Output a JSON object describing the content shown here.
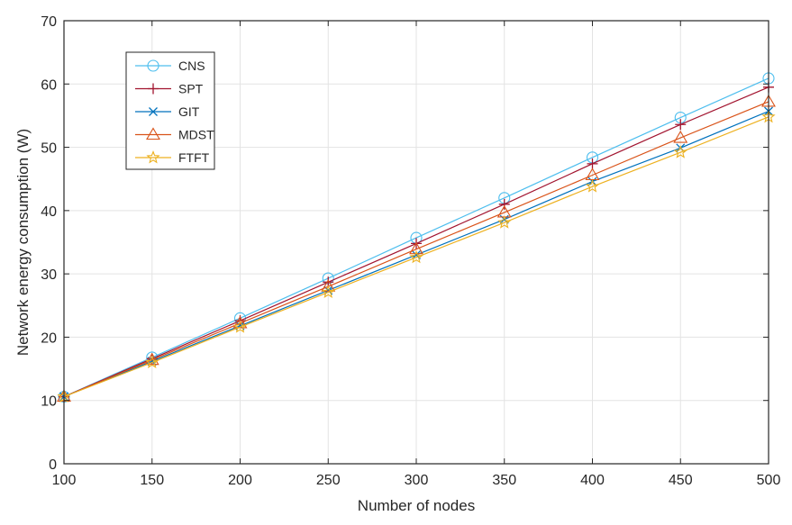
{
  "chart_data": {
    "type": "line",
    "title": "",
    "xlabel": "Number of nodes",
    "ylabel": "Network energy consumption (W)",
    "xlim": [
      100,
      500
    ],
    "ylim": [
      0,
      70
    ],
    "xticks": [
      100,
      150,
      200,
      250,
      300,
      350,
      400,
      450,
      500
    ],
    "yticks": [
      0,
      10,
      20,
      30,
      40,
      50,
      60,
      70
    ],
    "grid": true,
    "legend_position": "top-left",
    "x": [
      100,
      150,
      200,
      250,
      300,
      350,
      400,
      450,
      500
    ],
    "series": [
      {
        "name": "CNS",
        "color": "#4DBEEE",
        "marker": "circle",
        "values": [
          10.6,
          16.8,
          23.0,
          29.3,
          35.7,
          42.0,
          48.4,
          54.7,
          60.9
        ]
      },
      {
        "name": "SPT",
        "color": "#A2142F",
        "marker": "plus",
        "values": [
          10.6,
          16.6,
          22.6,
          28.7,
          34.8,
          41.0,
          47.4,
          53.6,
          59.5
        ]
      },
      {
        "name": "GIT",
        "color": "#0072BD",
        "marker": "x",
        "values": [
          10.6,
          16.2,
          21.8,
          27.4,
          33.0,
          38.6,
          44.6,
          49.9,
          55.7
        ]
      },
      {
        "name": "MDST",
        "color": "#D95319",
        "marker": "triangle",
        "values": [
          10.6,
          16.4,
          22.2,
          28.0,
          33.9,
          39.7,
          45.6,
          51.5,
          57.2
        ]
      },
      {
        "name": "FTFT",
        "color": "#EDB120",
        "marker": "star",
        "values": [
          10.6,
          16.0,
          21.6,
          27.1,
          32.6,
          38.1,
          43.8,
          49.2,
          54.8
        ]
      }
    ]
  }
}
